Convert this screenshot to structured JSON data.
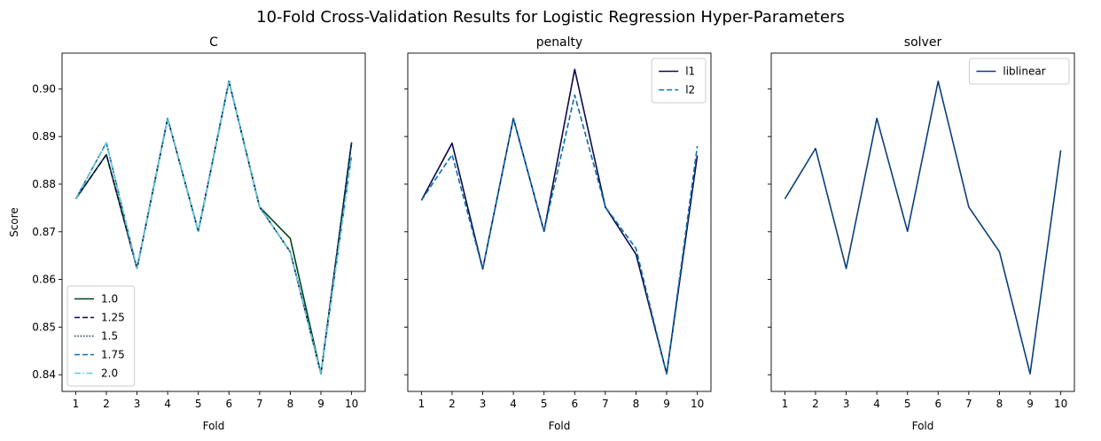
{
  "figure": {
    "suptitle": "10-Fold Cross-Validation Results for Logistic Regression Hyper-Parameters"
  },
  "chart_data": [
    {
      "type": "line",
      "title": "C",
      "xlabel": "Fold",
      "ylabel": "Score",
      "x": [
        1,
        2,
        3,
        4,
        5,
        6,
        7,
        8,
        9,
        10
      ],
      "xticks": [
        "1",
        "2",
        "3",
        "4",
        "5",
        "6",
        "7",
        "8",
        "9",
        "10"
      ],
      "ylim": [
        0.8365,
        0.9075
      ],
      "yticks": [
        "0.84",
        "0.85",
        "0.86",
        "0.87",
        "0.88",
        "0.89",
        "0.90"
      ],
      "show_yticklabels": true,
      "legend": "lower-left",
      "series": [
        {
          "name": "1.0",
          "color": "#00441b",
          "dash": "solid",
          "values": [
            0.8769,
            0.8862,
            0.8623,
            0.8938,
            0.8701,
            0.9016,
            0.8752,
            0.8686,
            0.8402,
            0.8888
          ]
        },
        {
          "name": "1.25",
          "color": "#08084e",
          "dash": "dashed",
          "values": [
            0.8769,
            0.8862,
            0.8623,
            0.8938,
            0.8701,
            0.9016,
            0.8752,
            0.8658,
            0.8402,
            0.8888
          ]
        },
        {
          "name": "1.5",
          "color": "#023858",
          "dash": "dotted",
          "values": [
            0.8769,
            0.8887,
            0.8623,
            0.8938,
            0.8701,
            0.9016,
            0.8752,
            0.8658,
            0.8402,
            0.8888
          ]
        },
        {
          "name": "1.75",
          "color": "#0570b0",
          "dash": "dashed",
          "values": [
            0.8769,
            0.8887,
            0.8623,
            0.8938,
            0.8701,
            0.9016,
            0.8752,
            0.8658,
            0.8402,
            0.886
          ]
        },
        {
          "name": "2.0",
          "color": "#67c8d4",
          "dash": "dashdot",
          "values": [
            0.8769,
            0.8887,
            0.8623,
            0.8938,
            0.8701,
            0.9016,
            0.8752,
            0.8658,
            0.8402,
            0.886
          ]
        }
      ]
    },
    {
      "type": "line",
      "title": "penalty",
      "xlabel": "Fold",
      "ylabel": "",
      "x": [
        1,
        2,
        3,
        4,
        5,
        6,
        7,
        8,
        9,
        10
      ],
      "xticks": [
        "1",
        "2",
        "3",
        "4",
        "5",
        "6",
        "7",
        "8",
        "9",
        "10"
      ],
      "ylim": [
        0.8365,
        0.9075
      ],
      "yticks": [
        "0.84",
        "0.85",
        "0.86",
        "0.87",
        "0.88",
        "0.89",
        "0.90"
      ],
      "show_yticklabels": false,
      "legend": "top-right",
      "series": [
        {
          "name": "l1",
          "color": "#0b0b4a",
          "dash": "solid",
          "values": [
            0.8766,
            0.8886,
            0.8622,
            0.8938,
            0.8701,
            0.9041,
            0.8752,
            0.8653,
            0.8402,
            0.886
          ]
        },
        {
          "name": "l2",
          "color": "#0570b0",
          "dash": "dashed",
          "values": [
            0.8766,
            0.8862,
            0.8622,
            0.8938,
            0.8701,
            0.8987,
            0.8752,
            0.8665,
            0.8402,
            0.888
          ]
        }
      ]
    },
    {
      "type": "line",
      "title": "solver",
      "xlabel": "Fold",
      "ylabel": "",
      "x": [
        1,
        2,
        3,
        4,
        5,
        6,
        7,
        8,
        9,
        10
      ],
      "xticks": [
        "1",
        "2",
        "3",
        "4",
        "5",
        "6",
        "7",
        "8",
        "9",
        "10"
      ],
      "ylim": [
        0.8365,
        0.9075
      ],
      "yticks": [
        "0.84",
        "0.85",
        "0.86",
        "0.87",
        "0.88",
        "0.89",
        "0.90"
      ],
      "show_yticklabels": false,
      "legend": "top-right",
      "series": [
        {
          "name": "liblinear",
          "color": "#08407a",
          "dash": "solid",
          "values": [
            0.8769,
            0.8875,
            0.8623,
            0.8938,
            0.8701,
            0.9016,
            0.8752,
            0.8658,
            0.8402,
            0.8871
          ]
        }
      ]
    }
  ]
}
